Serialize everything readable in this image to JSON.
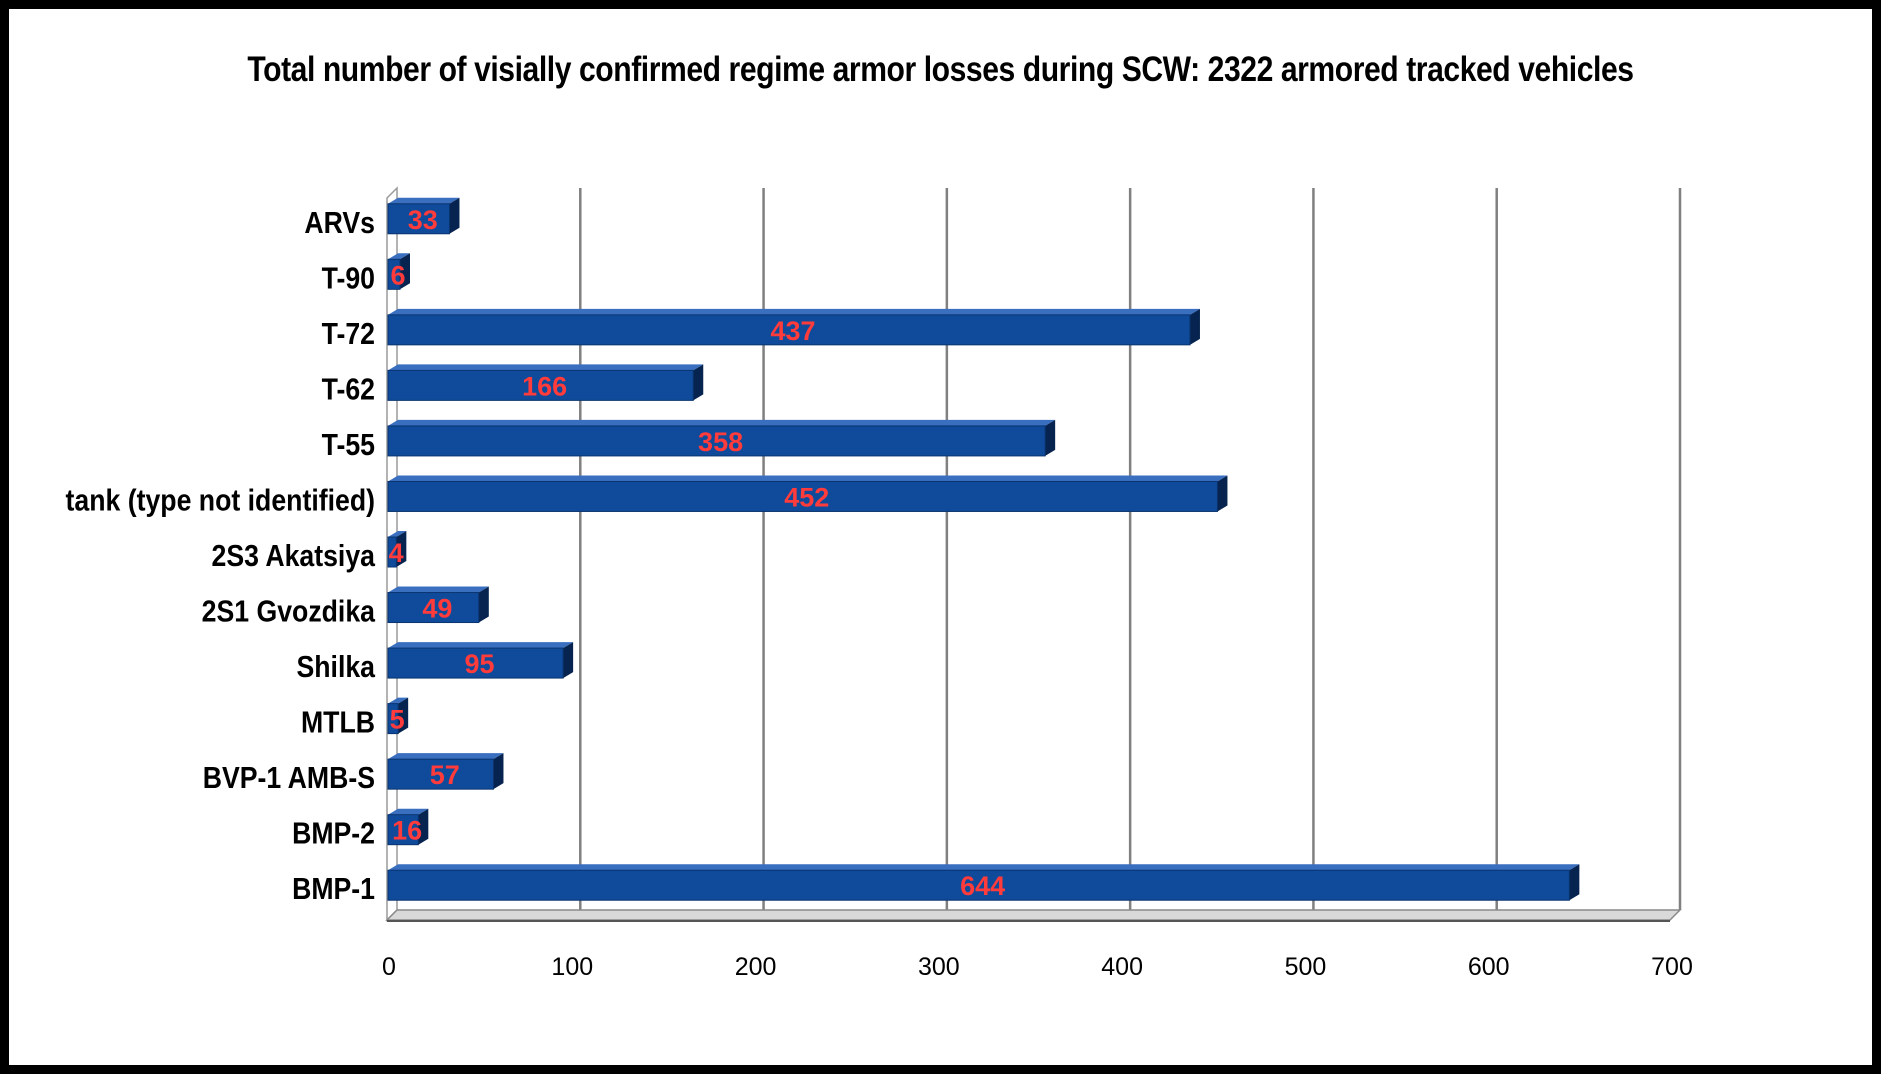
{
  "chart_data": {
    "type": "bar",
    "orientation": "horizontal",
    "title": "Total number of visially confirmed regime armor losses during SCW: 2322 armored tracked vehicles",
    "categories": [
      "ARVs",
      "T-90",
      "T-72",
      "T-62",
      "T-55",
      "tank (type not identified)",
      "2S3 Akatsiya",
      "2S1 Gvozdika",
      "Shilka",
      "MTLB",
      "BVP-1 AMB-S",
      "BMP-2",
      "BMP-1"
    ],
    "values": [
      33,
      6,
      437,
      166,
      358,
      452,
      4,
      49,
      95,
      5,
      57,
      16,
      644
    ],
    "data_labels": [
      "33",
      "6",
      "437",
      "166",
      "358",
      "452",
      "4",
      "49",
      "95",
      "5",
      "57",
      "16",
      "644"
    ],
    "xlim": [
      0,
      700
    ],
    "x_ticks": [
      "0",
      "100",
      "200",
      "300",
      "400",
      "500",
      "600",
      "700"
    ],
    "xlabel": "",
    "ylabel": "",
    "grid": true,
    "legend": "none",
    "style": "3d",
    "colors": {
      "bar_front": "#0f4b9a",
      "bar_top": "#3a6fc0",
      "bar_side": "#06244f",
      "data_label": "#ff3b3b",
      "gridline": "#808080"
    }
  }
}
